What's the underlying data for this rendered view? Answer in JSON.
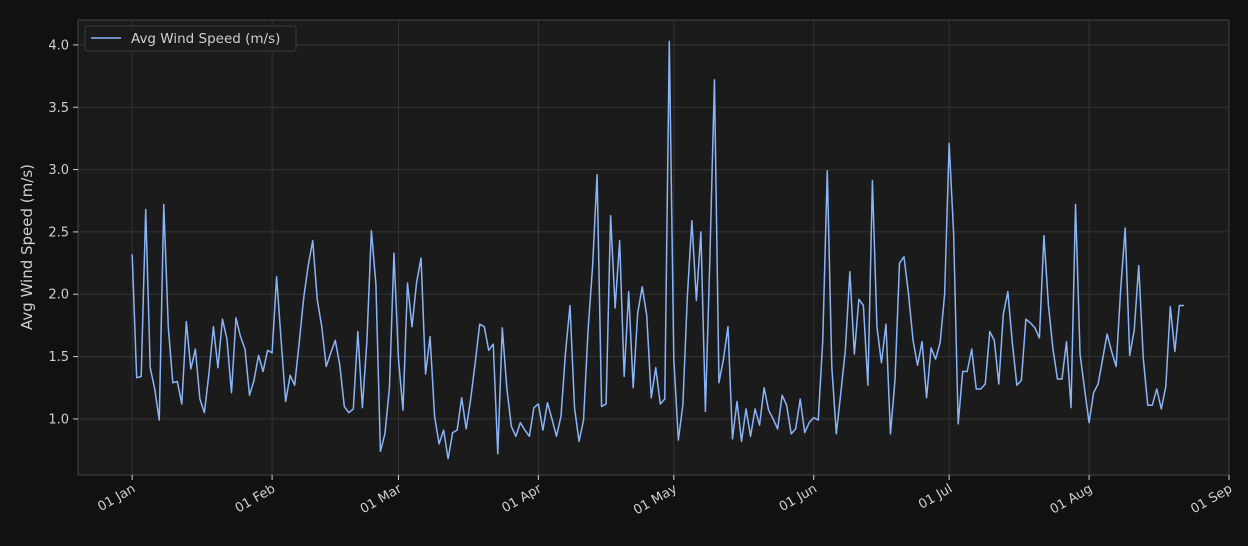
{
  "chart_data": {
    "type": "line",
    "ylabel": "Avg Wind Speed (m/s)",
    "xlabel": "",
    "title": "",
    "x_start": "2023-01-01",
    "x_ticks": [
      {
        "label": "01 Jan",
        "date": "2023-01-01"
      },
      {
        "label": "01 Feb",
        "date": "2023-02-01"
      },
      {
        "label": "01 Mar",
        "date": "2023-03-01"
      },
      {
        "label": "01 Apr",
        "date": "2023-04-01"
      },
      {
        "label": "01 May",
        "date": "2023-05-01"
      },
      {
        "label": "01 Jun",
        "date": "2023-06-01"
      },
      {
        "label": "01 Jul",
        "date": "2023-07-01"
      },
      {
        "label": "01 Aug",
        "date": "2023-08-01"
      },
      {
        "label": "01 Sep",
        "date": "2023-09-01"
      }
    ],
    "y_ticks": [
      1.0,
      1.5,
      2.0,
      2.5,
      3.0,
      3.5,
      4.0
    ],
    "y_tick_labels": [
      "1.0",
      "1.5",
      "2.0",
      "2.5",
      "3.0",
      "3.5",
      "4.0"
    ],
    "xlim": [
      "2022-12-20",
      "2023-09-01"
    ],
    "ylim": [
      0.55,
      4.2
    ],
    "grid": true,
    "legend": "top-left",
    "colors": {
      "background": "#111111",
      "plot_bg": "#1b1b1b",
      "grid": "#333333",
      "spine": "#444444",
      "line": "#8ab4f8"
    },
    "series": [
      {
        "name": "Avg Wind Speed (m/s)",
        "values": [
          2.32,
          1.33,
          1.34,
          2.68,
          1.41,
          1.24,
          0.99,
          2.72,
          1.74,
          1.29,
          1.3,
          1.12,
          1.78,
          1.4,
          1.56,
          1.16,
          1.05,
          1.36,
          1.74,
          1.41,
          1.8,
          1.64,
          1.21,
          1.81,
          1.66,
          1.56,
          1.19,
          1.31,
          1.51,
          1.38,
          1.55,
          1.53,
          2.14,
          1.63,
          1.14,
          1.35,
          1.27,
          1.61,
          1.97,
          2.23,
          2.43,
          1.96,
          1.74,
          1.42,
          1.53,
          1.63,
          1.43,
          1.1,
          1.05,
          1.08,
          1.7,
          1.09,
          1.62,
          2.51,
          2.08,
          0.74,
          0.88,
          1.25,
          2.33,
          1.48,
          1.07,
          2.09,
          1.74,
          2.09,
          2.29,
          1.36,
          1.66,
          1.02,
          0.8,
          0.91,
          0.68,
          0.89,
          0.91,
          1.17,
          0.92,
          1.16,
          1.45,
          1.76,
          1.74,
          1.55,
          1.6,
          0.72,
          1.73,
          1.25,
          0.94,
          0.86,
          0.97,
          0.91,
          0.86,
          1.09,
          1.12,
          0.91,
          1.13,
          1.0,
          0.86,
          1.02,
          1.53,
          1.91,
          1.09,
          0.82,
          0.99,
          1.71,
          2.22,
          2.96,
          1.1,
          1.12,
          2.63,
          1.89,
          2.43,
          1.34,
          2.02,
          1.25,
          1.85,
          2.06,
          1.83,
          1.17,
          1.41,
          1.12,
          1.16,
          4.03,
          1.48,
          0.83,
          1.11,
          1.98,
          2.59,
          1.95,
          2.5,
          1.06,
          2.3,
          3.72,
          1.29,
          1.48,
          1.74,
          0.84,
          1.14,
          0.82,
          1.08,
          0.86,
          1.08,
          0.95,
          1.25,
          1.07,
          1.0,
          0.92,
          1.19,
          1.11,
          0.88,
          0.92,
          1.16,
          0.89,
          0.97,
          1.01,
          0.99,
          1.63,
          2.99,
          1.42,
          0.88,
          1.21,
          1.55,
          2.18,
          1.52,
          1.96,
          1.91,
          1.27,
          2.91,
          1.74,
          1.45,
          1.76,
          0.88,
          1.31,
          2.25,
          2.3,
          2.0,
          1.63,
          1.43,
          1.62,
          1.17,
          1.57,
          1.48,
          1.61,
          2.0,
          3.21,
          2.48,
          0.96,
          1.38,
          1.38,
          1.56,
          1.24,
          1.24,
          1.28,
          1.7,
          1.63,
          1.28,
          1.84,
          2.02,
          1.61,
          1.27,
          1.31,
          1.8,
          1.77,
          1.73,
          1.65,
          2.47,
          1.91,
          1.56,
          1.32,
          1.32,
          1.62,
          1.09,
          2.72,
          1.52,
          1.24,
          0.97,
          1.21,
          1.28,
          1.48,
          1.68,
          1.54,
          1.42,
          2.04,
          2.53,
          1.51,
          1.71,
          2.23,
          1.49,
          1.11,
          1.11,
          1.24,
          1.08,
          1.26,
          1.9,
          1.54,
          1.91,
          1.91
        ]
      }
    ]
  }
}
